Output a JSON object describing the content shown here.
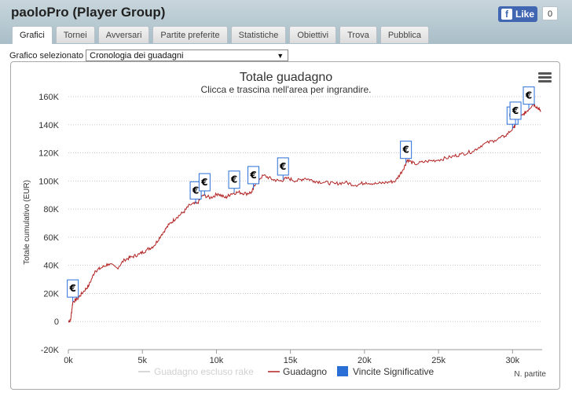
{
  "window": {
    "title": "paoloPro (Player Group)"
  },
  "facebook": {
    "like_label": "Like",
    "count": "0"
  },
  "tabs": [
    {
      "label": "Grafici",
      "active": true
    },
    {
      "label": "Tornei"
    },
    {
      "label": "Avversari"
    },
    {
      "label": "Partite preferite"
    },
    {
      "label": "Statistiche"
    },
    {
      "label": "Obiettivi"
    },
    {
      "label": "Trova"
    },
    {
      "label": "Pubblica"
    }
  ],
  "selector": {
    "label": "Grafico selezionato",
    "value": "Cronologia dei guadagni"
  },
  "colors": {
    "line": "#b22222",
    "marker": "#2a6fd6",
    "gridline": "#c8c8c8"
  },
  "chart_data": {
    "type": "line",
    "title": "Totale guadagno",
    "subtitle": "Clicca e trascina nell'area per ingrandire.",
    "xlabel": "N. partite",
    "ylabel": "Totale cumulativo (EUR)",
    "xlim": [
      0,
      32000
    ],
    "ylim": [
      -20000,
      160000
    ],
    "x_ticks": [
      "0k",
      "5k",
      "10k",
      "15k",
      "20k",
      "25k",
      "30k"
    ],
    "y_ticks": [
      "-20K",
      "0",
      "20K",
      "40K",
      "60K",
      "80K",
      "100K",
      "120K",
      "140K",
      "160K"
    ],
    "legend": [
      "Guadagno escluso rake",
      "Guadagno",
      "Vincite Significative"
    ],
    "series": [
      {
        "name": "Guadagno",
        "points": [
          [
            0,
            0
          ],
          [
            150,
            1000
          ],
          [
            300,
            14000
          ],
          [
            600,
            16000
          ],
          [
            1000,
            21000
          ],
          [
            1400,
            26000
          ],
          [
            1800,
            36000
          ],
          [
            2200,
            38000
          ],
          [
            2700,
            41000
          ],
          [
            3300,
            38000
          ],
          [
            3800,
            44000
          ],
          [
            4300,
            46000
          ],
          [
            4800,
            48000
          ],
          [
            5300,
            51000
          ],
          [
            5800,
            54000
          ],
          [
            6300,
            62000
          ],
          [
            6800,
            69000
          ],
          [
            7300,
            74000
          ],
          [
            7800,
            78000
          ],
          [
            8200,
            83000
          ],
          [
            8700,
            84000
          ],
          [
            9100,
            90000
          ],
          [
            9600,
            88000
          ],
          [
            10100,
            91000
          ],
          [
            10600,
            88000
          ],
          [
            11000,
            91000
          ],
          [
            11500,
            92000
          ],
          [
            12000,
            91000
          ],
          [
            12400,
            92000
          ],
          [
            12700,
            100000
          ],
          [
            13200,
            104000
          ],
          [
            13800,
            101000
          ],
          [
            14300,
            100000
          ],
          [
            14800,
            102000
          ],
          [
            15400,
            100000
          ],
          [
            16000,
            102000
          ],
          [
            16600,
            100000
          ],
          [
            17300,
            99000
          ],
          [
            18000,
            98000
          ],
          [
            18700,
            99000
          ],
          [
            19400,
            97000
          ],
          [
            20100,
            99000
          ],
          [
            20800,
            98000
          ],
          [
            21500,
            99000
          ],
          [
            22100,
            100000
          ],
          [
            22600,
            108000
          ],
          [
            22900,
            115000
          ],
          [
            23400,
            112000
          ],
          [
            24200,
            114000
          ],
          [
            25000,
            115000
          ],
          [
            25800,
            117000
          ],
          [
            26500,
            119000
          ],
          [
            27300,
            121000
          ],
          [
            28000,
            126000
          ],
          [
            28800,
            129000
          ],
          [
            29500,
            132000
          ],
          [
            30100,
            138000
          ],
          [
            30300,
            143000
          ],
          [
            30700,
            147000
          ],
          [
            31000,
            150000
          ],
          [
            31400,
            155000
          ],
          [
            31700,
            152000
          ],
          [
            31900,
            150000
          ]
        ]
      }
    ],
    "significant_wins_x": [
      300,
      8600,
      9200,
      11200,
      12500,
      14500,
      22800,
      30000,
      30200,
      31100
    ]
  }
}
